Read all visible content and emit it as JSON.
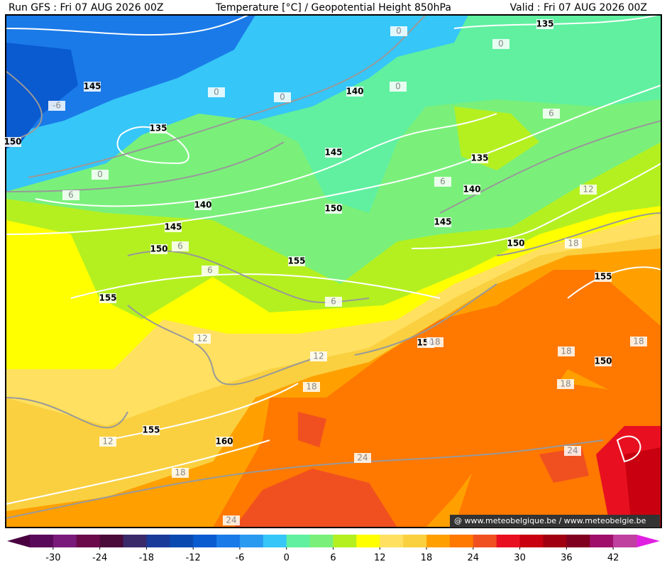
{
  "header": {
    "left": "Run GFS : Fri 07 AUG 2026 00Z",
    "center": "Temperature [°C] / Geopotential Height 850hPa",
    "right": "Valid : Fri 07 AUG 2026 00Z"
  },
  "map": {
    "height_labels": [
      135,
      145,
      140,
      135,
      150,
      145,
      135,
      140,
      140,
      150,
      145,
      145,
      150,
      150,
      155,
      155,
      155,
      150,
      150,
      155,
      160
    ],
    "temperature_labels": [
      0,
      0,
      0,
      0,
      0,
      -6,
      0,
      6,
      6,
      6,
      12,
      6,
      6,
      6,
      18,
      12,
      12,
      18,
      18,
      18,
      18,
      18,
      12,
      18,
      24,
      24,
      24
    ]
  },
  "credit": "@ www.meteobelgique.be / www.meteobelgie.be",
  "colorbar": {
    "ticks": [
      -30,
      -24,
      -18,
      -12,
      -6,
      0,
      6,
      12,
      18,
      24,
      30,
      36,
      42
    ],
    "colors": [
      "#5a0a5a",
      "#7a1a7a",
      "#6a0a4a",
      "#4a0a3a",
      "#3a2a6a",
      "#1a3a9a",
      "#0a4ab0",
      "#0a5ad0",
      "#1a7ae8",
      "#2a9af0",
      "#36c6f8",
      "#60f0a0",
      "#7af07a",
      "#b4f020",
      "#ffff00",
      "#ffe060",
      "#fad040",
      "#ffa000",
      "#ff7800",
      "#f05020",
      "#e81020",
      "#c80010",
      "#a00010",
      "#800020",
      "#a0106a",
      "#c040a0"
    ],
    "low_color": "#4a0040",
    "high_color": "#e020e0"
  }
}
